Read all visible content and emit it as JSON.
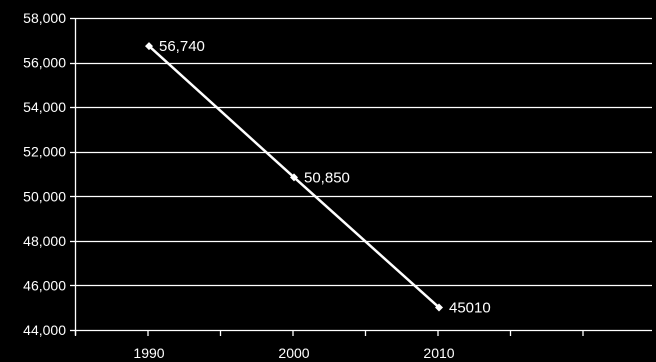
{
  "chart_data": {
    "type": "line",
    "categories": [
      "1990",
      "2000",
      "2010"
    ],
    "series": [
      {
        "values": [
          56740,
          50850,
          45010
        ],
        "color": "#ffffff"
      }
    ],
    "data_labels": [
      "56,740",
      "50,850",
      "45010"
    ],
    "ylim": [
      44000,
      58000
    ],
    "y_ticks": [
      44000,
      46000,
      48000,
      50000,
      52000,
      54000,
      56000,
      58000
    ],
    "y_tick_labels": [
      "44,000",
      "46,000",
      "48,000",
      "50,000",
      "52,000",
      "54,000",
      "56,000",
      "58,000"
    ],
    "grid": true,
    "legend": "none",
    "background_color": "#000000",
    "gridline_color": "#ffffff",
    "text_color": "#ffffff"
  }
}
